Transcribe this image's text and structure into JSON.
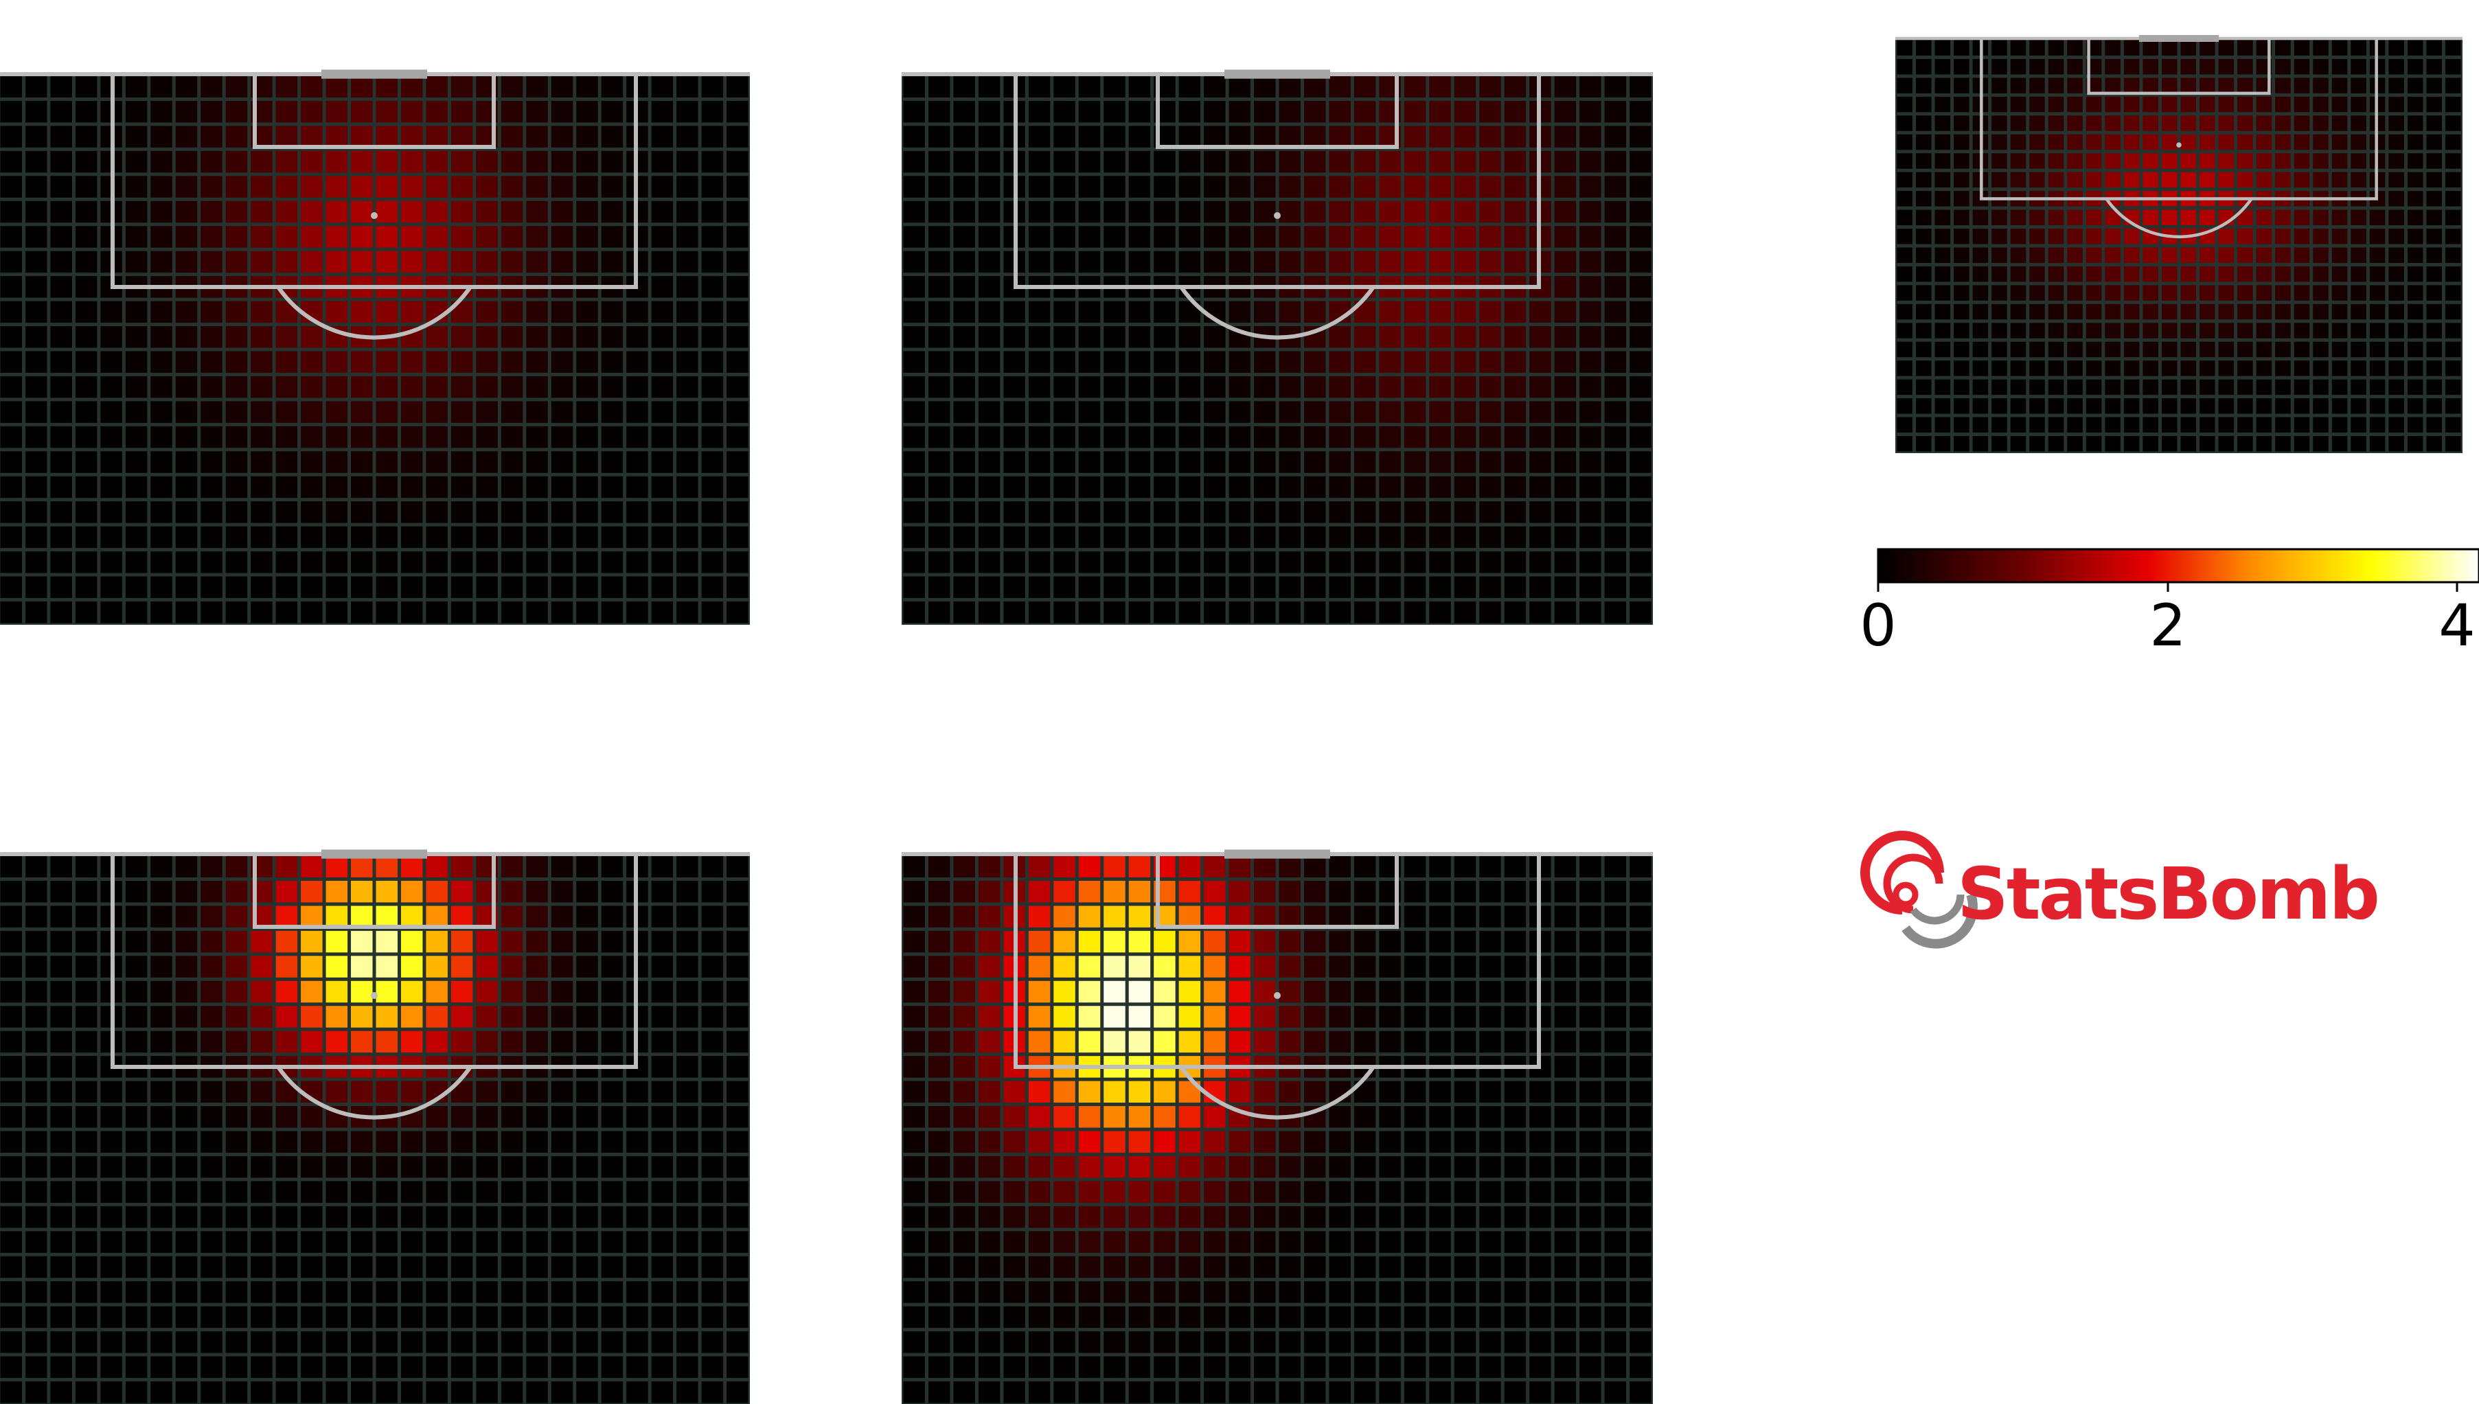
{
  "chart_data": {
    "type": "heatmap",
    "description_panels": 5,
    "grid": {
      "cols": 30,
      "rows": 22
    },
    "colormap": [
      "#000000",
      "#e60000",
      "#ff8c00",
      "#ffff00",
      "#ffffff"
    ],
    "vmin": 0,
    "vmax": 4.2,
    "panels": [
      {
        "id": "top-left",
        "peak": {
          "col": 15,
          "row": 6.5,
          "value": 1.5,
          "sx": 4.3,
          "sy": 4.6
        }
      },
      {
        "id": "top-middle",
        "peak": {
          "col": 21,
          "row": 7,
          "value": 1.15,
          "sx": 4.0,
          "sy": 5.0
        }
      },
      {
        "id": "top-right",
        "peak": {
          "col": 15,
          "row": 8.5,
          "value": 1.6,
          "sx": 5.5,
          "sy": 4.0
        }
      },
      {
        "id": "bottom-left",
        "peak": {
          "col": 15,
          "row": 4,
          "value": 4.0,
          "sx": 3.2,
          "sy": 3.2
        }
      },
      {
        "id": "bottom-middle",
        "peak": {
          "col": 9,
          "row": 6,
          "value": 4.2,
          "sx": 3.6,
          "sy": 4.6
        }
      }
    ],
    "colorbar": {
      "ticks": [
        "0",
        "2",
        "4"
      ],
      "tick_values": [
        0,
        2,
        4
      ]
    }
  },
  "logo": {
    "text": "StatsBomb"
  },
  "colors": {
    "grid_line": "#26322e",
    "pitch_line": "#bdbdbd",
    "goal": "#a6a6a6",
    "brand": "#e2232e"
  }
}
